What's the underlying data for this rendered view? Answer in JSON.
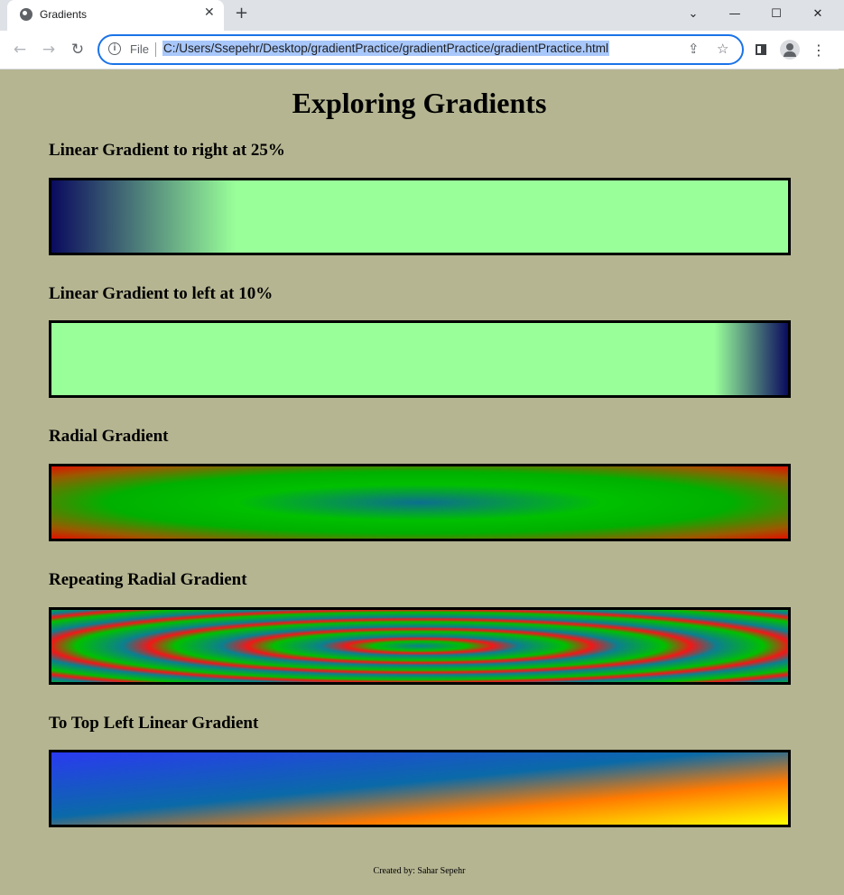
{
  "browser": {
    "tab_title": "Gradients",
    "tab_close": "✕",
    "new_tab": "+",
    "window_controls": {
      "collapse": "⌄",
      "minimize": "—",
      "maximize": "☐",
      "close": "✕"
    },
    "nav": {
      "back": "←",
      "forward": "→",
      "reload": "↻"
    },
    "address_bar": {
      "info_icon": "i",
      "scheme": "File",
      "url": "C:/Users/Ssepehr/Desktop/gradientPractice/gradientPractice/gradientPractice.html"
    },
    "icons": [
      "info-icon",
      "share-icon",
      "star-icon",
      "side-panel-icon",
      "profile-icon",
      "menu-icon"
    ],
    "share_glyph": "⇪",
    "star_glyph": "☆",
    "menu_glyph": "⋮"
  },
  "page": {
    "title": "Exploring Gradients",
    "sections": [
      {
        "heading": "Linear Gradient to right at 25%",
        "gradient": "linear-gradient(to right, #0a0a5e 0%, #99ff99 25%)"
      },
      {
        "heading": "Linear Gradient to left at 10%",
        "gradient": "linear-gradient(to left, #0a0a5e 0%, #99ff99 10%)"
      },
      {
        "heading": "Radial Gradient",
        "gradient": "radial-gradient(ellipse at center, #0c6f8f 0%, #00c000 35%, #00b000 60%, #9a5a00 85%, #e01000 100%)"
      },
      {
        "heading": "Repeating Radial Gradient",
        "gradient": "repeating-radial-gradient(ellipse at center, #0c7f8f 0px, #00c000 9%, #f01818 14%, #0c7f8f 19%)"
      },
      {
        "heading": "To Top Left Linear Gradient",
        "gradient": "linear-gradient(to top left, #ffff00 0%, #ff7a00 30%, #0a6aa8 55%, #2a3af0 100%)"
      }
    ],
    "footer": "Created by: Sahar Sepehr"
  },
  "colors": {
    "page_background": "#b5b592",
    "navy": "#0a0a5e",
    "light_green": "#99ff99",
    "accent_blue": "#1a73e8"
  }
}
